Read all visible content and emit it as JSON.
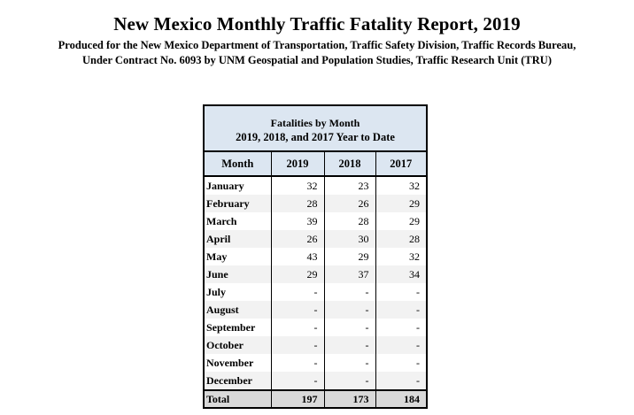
{
  "report": {
    "title": "New Mexico Monthly Traffic Fatality Report, 2019",
    "subtitle_line1": "Produced for the New Mexico Department of Transportation, Traffic Safety Division, Traffic Records Bureau,",
    "subtitle_line2": "Under Contract No. 6093 by UNM Geospatial and Population Studies, Traffic Research Unit (TRU)"
  },
  "table": {
    "caption_line1": "Fatalities by Month",
    "caption_line2": "2019, 2018, and 2017  Year to Date",
    "headers": [
      "Month",
      "2019",
      "2018",
      "2017"
    ],
    "rows": [
      {
        "month": "January",
        "v2019": "32",
        "v2018": "23",
        "v2017": "32"
      },
      {
        "month": "February",
        "v2019": "28",
        "v2018": "26",
        "v2017": "29"
      },
      {
        "month": "March",
        "v2019": "39",
        "v2018": "28",
        "v2017": "29"
      },
      {
        "month": "April",
        "v2019": "26",
        "v2018": "30",
        "v2017": "28"
      },
      {
        "month": "May",
        "v2019": "43",
        "v2018": "29",
        "v2017": "32"
      },
      {
        "month": "June",
        "v2019": "29",
        "v2018": "37",
        "v2017": "34"
      },
      {
        "month": "July",
        "v2019": "-",
        "v2018": "-",
        "v2017": "-"
      },
      {
        "month": "August",
        "v2019": "-",
        "v2018": "-",
        "v2017": "-"
      },
      {
        "month": "September",
        "v2019": "-",
        "v2018": "-",
        "v2017": "-"
      },
      {
        "month": "October",
        "v2019": "-",
        "v2018": "-",
        "v2017": "-"
      },
      {
        "month": "November",
        "v2019": "-",
        "v2018": "-",
        "v2017": "-"
      },
      {
        "month": "December",
        "v2019": "-",
        "v2018": "-",
        "v2017": "-"
      }
    ],
    "total": {
      "label": "Total",
      "v2019": "197",
      "v2018": "173",
      "v2017": "184"
    }
  },
  "colors": {
    "header_fill": "#dce6f1",
    "total_fill": "#d9d9d9",
    "row_shade": "#f2f2f2"
  }
}
